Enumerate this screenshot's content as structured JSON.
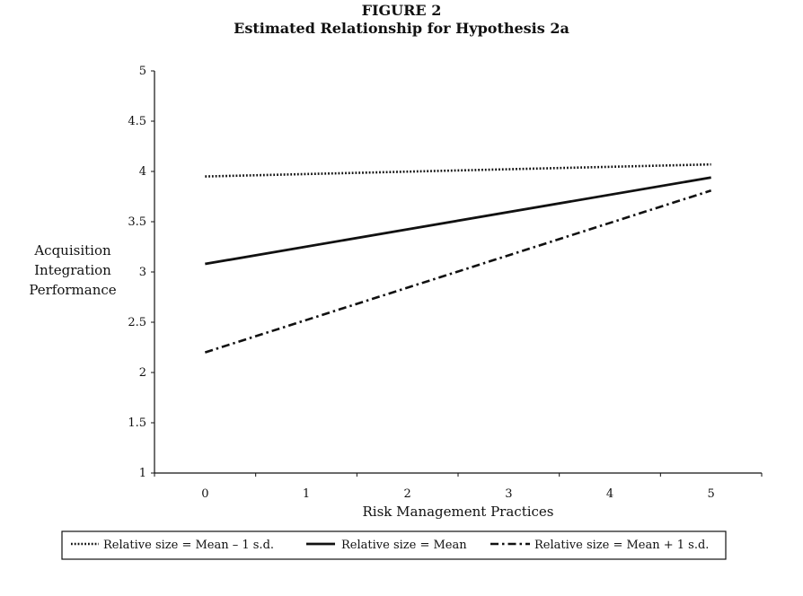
{
  "figure": {
    "label": "FIGURE 2",
    "title": "Estimated Relationship for Hypothesis 2a"
  },
  "chart_data": {
    "type": "line",
    "title": "Estimated Relationship for Hypothesis 2a",
    "xlabel": "Risk Management Practices",
    "ylabel_lines": [
      "Acquisition",
      "Integration",
      "Performance"
    ],
    "xlim": [
      -0.5,
      5.5
    ],
    "ylim": [
      1,
      5
    ],
    "x_ticks": [
      0,
      1,
      2,
      3,
      4,
      5
    ],
    "y_ticks": [
      1,
      1.5,
      2,
      2.5,
      3,
      3.5,
      4,
      4.5,
      5
    ],
    "x_tick_labels": [
      "0",
      "1",
      "2",
      "3",
      "4",
      "5"
    ],
    "y_tick_labels": [
      "1",
      "1.5",
      "2",
      "2.5",
      "3",
      "3.5",
      "4",
      "4.5",
      "5"
    ],
    "grid": false,
    "legend_position": "bottom",
    "series": [
      {
        "name": "Relative size = Mean – 1 s.d.",
        "style": "dotted",
        "x": [
          0,
          5
        ],
        "y": [
          3.95,
          4.07
        ]
      },
      {
        "name": "Relative size = Mean",
        "style": "solid",
        "x": [
          0,
          5
        ],
        "y": [
          3.08,
          3.94
        ]
      },
      {
        "name": "Relative size = Mean + 1 s.d.",
        "style": "dashdot",
        "x": [
          0,
          5
        ],
        "y": [
          2.2,
          3.81
        ]
      }
    ]
  }
}
